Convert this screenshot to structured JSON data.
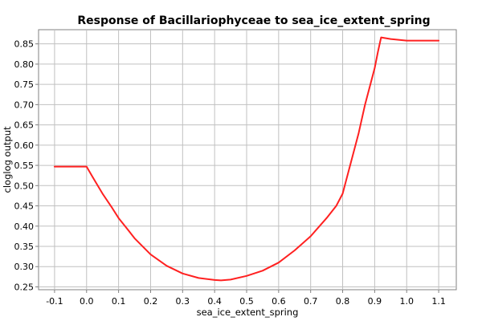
{
  "chart_data": {
    "type": "line",
    "title": "Response of Bacillariophyceae to sea_ice_extent_spring",
    "xlabel": "sea_ice_extent_spring",
    "ylabel": "cloglog output",
    "xlim": [
      -0.15,
      1.155
    ],
    "ylim": [
      0.243,
      0.885
    ],
    "x_ticks": [
      -0.1,
      0.0,
      0.1,
      0.2,
      0.3,
      0.4,
      0.5,
      0.6,
      0.7,
      0.8,
      0.9,
      1.0,
      1.1
    ],
    "x_tick_labels": [
      "-0.1",
      "0.0",
      "0.1",
      "0.2",
      "0.3",
      "0.4",
      "0.5",
      "0.6",
      "0.7",
      "0.8",
      "0.9",
      "1.0",
      "1.1"
    ],
    "y_ticks": [
      0.25,
      0.3,
      0.35,
      0.4,
      0.45,
      0.5,
      0.55,
      0.6,
      0.65,
      0.7,
      0.75,
      0.8,
      0.85
    ],
    "y_tick_labels": [
      "0.25",
      "0.30",
      "0.35",
      "0.40",
      "0.45",
      "0.50",
      "0.55",
      "0.60",
      "0.65",
      "0.70",
      "0.75",
      "0.80",
      "0.85"
    ],
    "grid": true,
    "line_color": "#ff2020",
    "series": [
      {
        "x": [
          -0.1,
          -0.05,
          0.0,
          0.005,
          0.02,
          0.05,
          0.08,
          0.1,
          0.13,
          0.15,
          0.2,
          0.25,
          0.3,
          0.35,
          0.4,
          0.42,
          0.45,
          0.5,
          0.55,
          0.6,
          0.65,
          0.7,
          0.75,
          0.78,
          0.8,
          0.82,
          0.85,
          0.87,
          0.9,
          0.91,
          0.92,
          0.95,
          1.0,
          1.05,
          1.1
        ],
        "y": [
          0.547,
          0.547,
          0.547,
          0.54,
          0.52,
          0.48,
          0.445,
          0.42,
          0.39,
          0.37,
          0.33,
          0.302,
          0.283,
          0.272,
          0.267,
          0.266,
          0.268,
          0.277,
          0.29,
          0.31,
          0.34,
          0.375,
          0.42,
          0.45,
          0.48,
          0.54,
          0.63,
          0.7,
          0.79,
          0.83,
          0.866,
          0.862,
          0.858,
          0.858,
          0.858
        ]
      }
    ]
  }
}
